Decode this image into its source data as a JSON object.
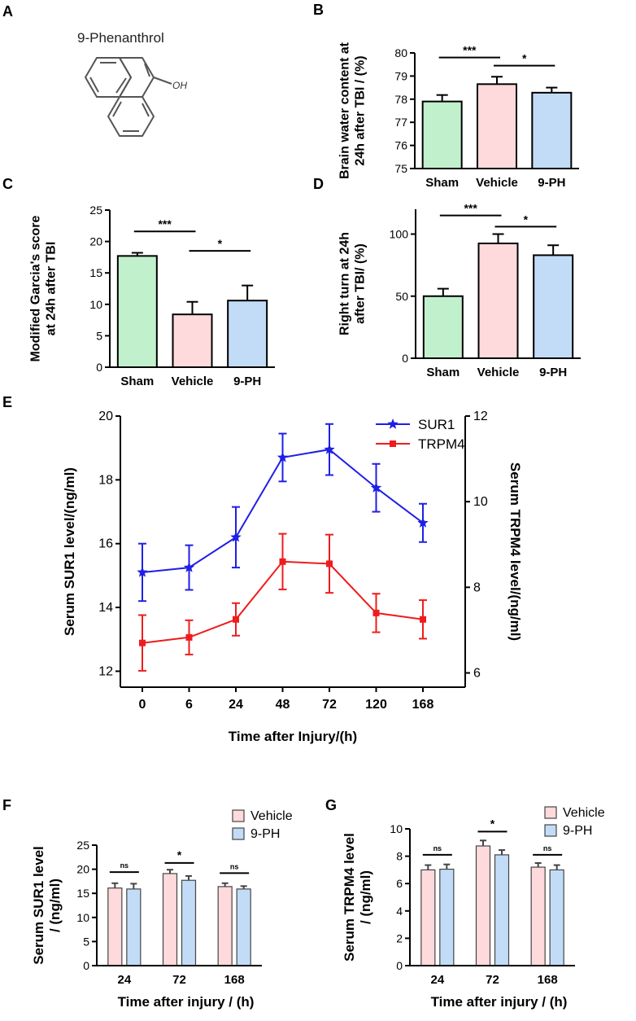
{
  "panels": {
    "A": {
      "letter": "A",
      "compound_name": "9-Phenanthrol",
      "oh_label": "OH"
    },
    "B": {
      "letter": "B"
    },
    "C": {
      "letter": "C"
    },
    "D": {
      "letter": "D"
    },
    "E": {
      "letter": "E"
    },
    "F": {
      "letter": "F"
    },
    "G": {
      "letter": "G"
    }
  },
  "colors": {
    "sham": "#c1f0cd",
    "vehicle": "#ffdadc",
    "ph9": "#c2dcf7",
    "sur1": "#1f1fe6",
    "trpm4": "#ee1c1c",
    "axis": "#000000"
  },
  "chart_data": [
    {
      "id": "B",
      "type": "bar",
      "categories": [
        "Sham",
        "Vehicle",
        "9-PH"
      ],
      "values": [
        77.9,
        78.65,
        78.28
      ],
      "errors": [
        0.28,
        0.32,
        0.22
      ],
      "ylabel": [
        "Brain water content at",
        "24h after TBI / (%)"
      ],
      "ylim": [
        75,
        80
      ],
      "yticks": [
        75,
        76,
        77,
        78,
        79,
        80
      ],
      "significance": [
        {
          "from": 0,
          "to": 1,
          "label": "***",
          "level": 79.8
        },
        {
          "from": 1,
          "to": 2,
          "label": "*",
          "level": 79.45
        }
      ]
    },
    {
      "id": "C",
      "type": "bar",
      "categories": [
        "Sham",
        "Vehicle",
        "9-PH"
      ],
      "values": [
        17.7,
        8.4,
        10.6
      ],
      "errors": [
        0.5,
        2.0,
        2.4
      ],
      "ylabel": [
        "Modified Garcia's score",
        "at 24h after TBI"
      ],
      "ylim": [
        0,
        25
      ],
      "yticks": [
        0,
        5,
        10,
        15,
        20,
        25
      ],
      "significance": [
        {
          "from": 0,
          "to": 1,
          "label": "***",
          "level": 21.6
        },
        {
          "from": 1,
          "to": 2,
          "label": "*",
          "level": 18.5
        }
      ]
    },
    {
      "id": "D",
      "type": "bar",
      "categories": [
        "Sham",
        "Vehicle",
        "9-PH"
      ],
      "values": [
        50,
        92.5,
        83
      ],
      "errors": [
        6,
        7.5,
        8
      ],
      "ylabel": [
        "Right turn at 24h",
        "after TBI/ (%)"
      ],
      "ylim": [
        0,
        120
      ],
      "yticks": [
        0,
        50,
        100
      ],
      "ytick_labels": [
        "0",
        "50",
        "100"
      ],
      "significance": [
        {
          "from": 0,
          "to": 1,
          "label": "***",
          "level": 115
        },
        {
          "from": 1,
          "to": 2,
          "label": "*",
          "level": 106
        }
      ]
    },
    {
      "id": "E",
      "type": "line",
      "x": [
        "0",
        "6",
        "24",
        "48",
        "72",
        "120",
        "168"
      ],
      "series": [
        {
          "name": "SUR1",
          "axis": "left",
          "values": [
            15.1,
            15.25,
            16.2,
            18.7,
            18.95,
            17.75,
            16.65
          ],
          "errors": [
            0.9,
            0.7,
            0.95,
            0.75,
            0.8,
            0.75,
            0.6
          ]
        },
        {
          "name": "TRPM4",
          "axis": "right",
          "values": [
            6.7,
            6.83,
            7.25,
            8.6,
            8.55,
            7.4,
            7.25
          ],
          "errors": [
            0.65,
            0.4,
            0.38,
            0.65,
            0.68,
            0.45,
            0.45
          ]
        }
      ],
      "xlabel": "Time after Injury/(h)",
      "ylabel_left": "Serum SUR1 level/(ng/ml)",
      "ylabel_right": "Serum TRPM4 level/(ng/ml)",
      "ylim_left": [
        11.5,
        20
      ],
      "yticks_left": [
        12,
        14,
        16,
        18,
        20
      ],
      "ylim_right": [
        5.667,
        12
      ],
      "yticks_right": [
        6,
        8,
        10,
        12
      ],
      "legend_position": "top-right"
    },
    {
      "id": "F",
      "type": "bar",
      "categories": [
        "24",
        "72",
        "168"
      ],
      "series": [
        {
          "name": "Vehicle",
          "values": [
            16.1,
            19.1,
            16.4
          ],
          "errors": [
            1.0,
            0.8,
            0.7
          ]
        },
        {
          "name": "9-PH",
          "values": [
            15.9,
            17.7,
            15.9
          ],
          "errors": [
            1.1,
            0.9,
            0.6
          ]
        }
      ],
      "xlabel": "Time after injury / (h)",
      "ylabel": [
        "Serum SUR1 level",
        "/ (ng/ml)"
      ],
      "ylim": [
        0,
        25
      ],
      "yticks": [
        0,
        5,
        10,
        15,
        20,
        25
      ],
      "significance": [
        {
          "group": 0,
          "label": "ns",
          "level": 19.4
        },
        {
          "group": 1,
          "label": "*",
          "level": 21.3
        },
        {
          "group": 2,
          "label": "ns",
          "level": 19.2
        }
      ],
      "legend_position": "top-right"
    },
    {
      "id": "G",
      "type": "bar",
      "categories": [
        "24",
        "72",
        "168"
      ],
      "series": [
        {
          "name": "Vehicle",
          "values": [
            7.0,
            8.75,
            7.2
          ],
          "errors": [
            0.35,
            0.4,
            0.3
          ]
        },
        {
          "name": "9-PH",
          "values": [
            7.05,
            8.1,
            7.0
          ],
          "errors": [
            0.35,
            0.35,
            0.35
          ]
        }
      ],
      "xlabel": "Time after injury / (h)",
      "ylabel": [
        "Serum TRPM4 level",
        "/ (ng/ml)"
      ],
      "ylim": [
        0,
        10
      ],
      "yticks": [
        0,
        2,
        4,
        6,
        8,
        10
      ],
      "significance": [
        {
          "group": 0,
          "label": "ns",
          "level": 8.1
        },
        {
          "group": 1,
          "label": "*",
          "level": 9.8
        },
        {
          "group": 2,
          "label": "ns",
          "level": 8.1
        }
      ],
      "legend_position": "top-right"
    }
  ]
}
